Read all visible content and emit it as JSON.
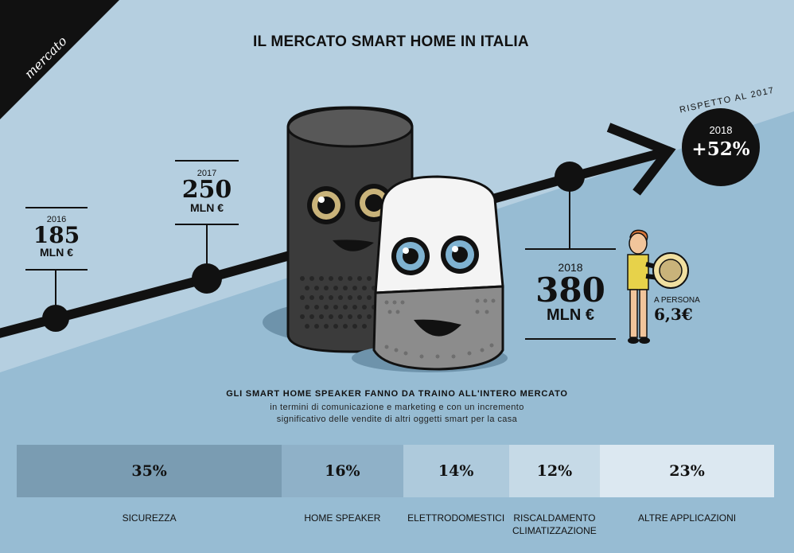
{
  "corner_label": "mercato",
  "title": "IL MERCATO SMART HOME IN ITALIA",
  "timeline": [
    {
      "year": "2016",
      "value": "185",
      "unit": "MLN €"
    },
    {
      "year": "2017",
      "value": "250",
      "unit": "MLN €"
    },
    {
      "year": "2018",
      "value": "380",
      "unit": "MLN €"
    }
  ],
  "growth": {
    "caption": "RISPETTO AL 2017",
    "year": "2018",
    "value": "+52%"
  },
  "per_person": {
    "label": "A PERSONA",
    "value": "6,3€"
  },
  "headline": "GLI SMART HOME SPEAKER  FANNO DA TRAINO ALL'INTERO MERCATO",
  "subtext": [
    "in termini di comunicazione e marketing e con un incremento",
    "significativo delle vendite di altri oggetti smart per la casa"
  ],
  "colors": {
    "background": "#b5cfe0",
    "lower_background": "#97bcd3",
    "dark": "#111111",
    "segments": [
      "#7a9cb2",
      "#8fb1c8",
      "#aecadc",
      "#c6dae7",
      "#dce8f1"
    ]
  },
  "icons": [
    "echo-speaker-icon",
    "google-home-speaker-icon",
    "person-holding-coin-icon",
    "trend-arrow-icon"
  ],
  "chart_data": {
    "type": "bar",
    "stacked": true,
    "orientation": "horizontal",
    "categories": [
      "SICUREZZA",
      "HOME SPEAKER",
      "ELETTRODOMESTICI",
      "RISCALDAMENTO CLIMATIZZAZIONE",
      "ALTRE APPLICAZIONI"
    ],
    "values": [
      35,
      16,
      14,
      12,
      23
    ],
    "labels": [
      "35%",
      "16%",
      "14%",
      "12%",
      "23%"
    ],
    "timeline_values": {
      "x": [
        "2016",
        "2017",
        "2018"
      ],
      "y": [
        185,
        250,
        380
      ]
    }
  }
}
